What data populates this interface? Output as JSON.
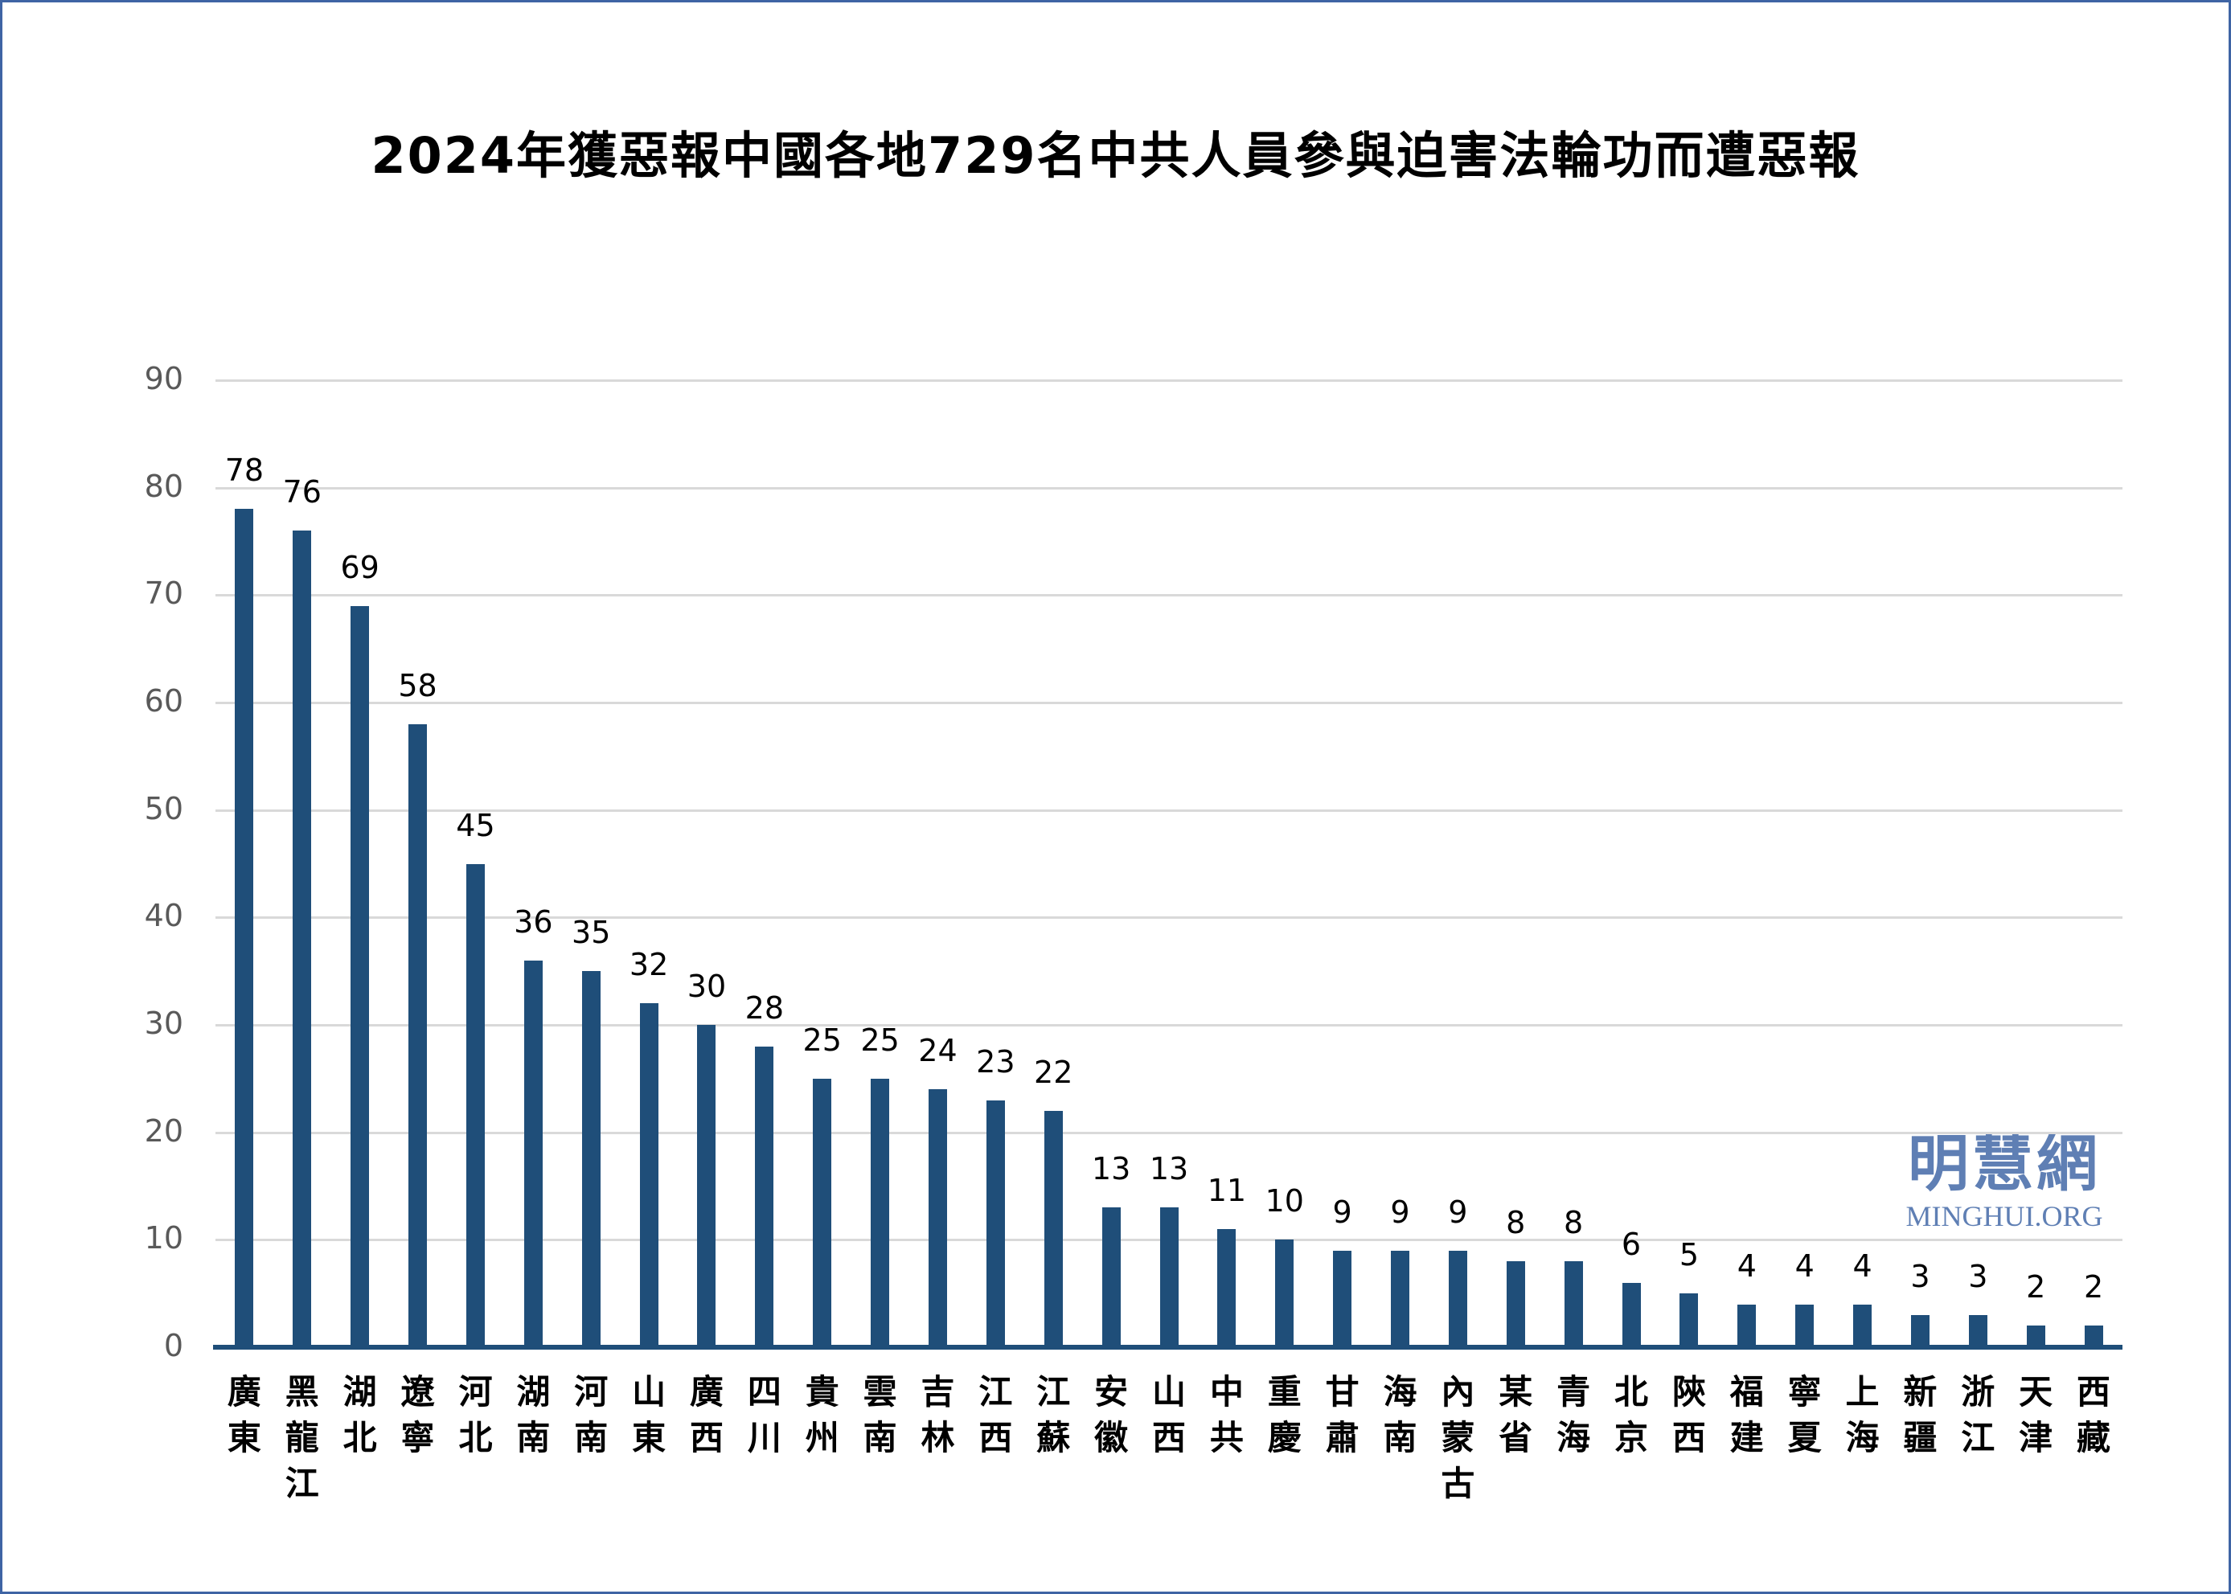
{
  "title": "2024年獲惡報中國各地729名中共人員參與迫害法輪功而遭惡報",
  "logo": {
    "cn": "明慧網",
    "en": "MINGHUI.ORG"
  },
  "colors": {
    "bar": "#1f4e79",
    "grid": "#d9d9d9",
    "border": "#3f64a4",
    "logo": "#5f7fb4"
  },
  "chart_data": {
    "type": "bar",
    "title": "2024年獲惡報中國各地729名中共人員參與迫害法輪功而遭惡報",
    "xlabel": "",
    "ylabel": "",
    "ylim": [
      0,
      90
    ],
    "yticks": [
      0,
      10,
      20,
      30,
      40,
      50,
      60,
      70,
      80,
      90
    ],
    "grid": true,
    "legend": null,
    "data_labels": true,
    "categories": [
      "廣東",
      "黑龍江",
      "湖北",
      "遼寧",
      "河北",
      "湖南",
      "河南",
      "山東",
      "廣西",
      "四川",
      "貴州",
      "雲南",
      "吉林",
      "江西",
      "江蘇",
      "安徽",
      "山西",
      "中共",
      "重慶",
      "甘肅",
      "海南",
      "內蒙古",
      "某省",
      "青海",
      "北京",
      "陝西",
      "福建",
      "寧夏",
      "上海",
      "新疆",
      "浙江",
      "天津",
      "西藏"
    ],
    "values": [
      78,
      76,
      69,
      58,
      45,
      36,
      35,
      32,
      30,
      28,
      25,
      25,
      24,
      23,
      22,
      13,
      13,
      11,
      10,
      9,
      9,
      9,
      8,
      8,
      6,
      5,
      4,
      4,
      4,
      3,
      3,
      2,
      2
    ]
  }
}
